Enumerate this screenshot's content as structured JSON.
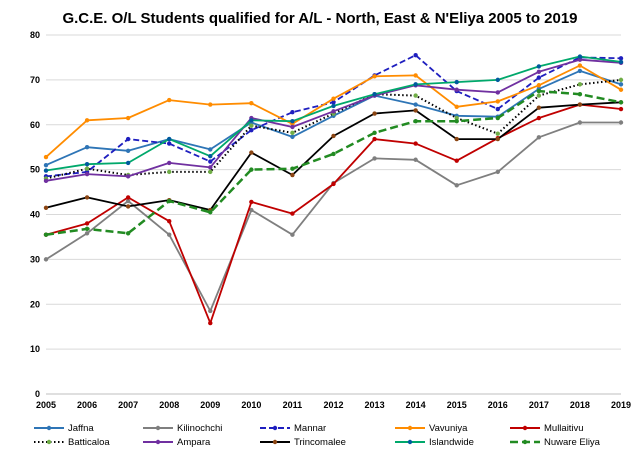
{
  "chart_data": {
    "type": "line",
    "title": "G.C.E. O/L Students qualified for A/L - North, East & N'Eliya 2005 to 2019",
    "xlabel": "",
    "ylabel": "",
    "categories": [
      "2005",
      "2006",
      "2007",
      "2008",
      "2009",
      "2010",
      "2011",
      "2012",
      "2013",
      "2014",
      "2015",
      "2016",
      "2017",
      "2018",
      "2019"
    ],
    "ylim": [
      0,
      80
    ],
    "yticks": [
      0,
      10,
      20,
      30,
      40,
      50,
      60,
      70,
      80
    ],
    "grid": true,
    "legend_position": "bottom",
    "series": [
      {
        "name": "Jaffna",
        "color": "#2E75B6",
        "dash": "solid",
        "marker": "dot",
        "values": [
          51,
          55,
          54.2,
          56.8,
          54.5,
          60.5,
          57.3,
          62,
          66.5,
          64.5,
          62,
          61.8,
          68,
          72,
          69
        ]
      },
      {
        "name": "Kilinochchi",
        "color": "#7F7F7F",
        "dash": "solid",
        "marker": "dot",
        "values": [
          30,
          35.8,
          43,
          35.5,
          18.5,
          41,
          35.5,
          47,
          52.5,
          52.2,
          46.5,
          49.5,
          57.2,
          60.5,
          60.5
        ]
      },
      {
        "name": "Mannar",
        "color": "#1F1FBF",
        "dash": "dash",
        "marker": "dot",
        "values": [
          48.5,
          49.5,
          56.8,
          55.8,
          51.8,
          58.8,
          62.8,
          65,
          71,
          75.5,
          67.5,
          63.5,
          70.5,
          75,
          74.8
        ]
      },
      {
        "name": "Vavuniya",
        "color": "#FF8C00",
        "dash": "solid",
        "marker": "dot",
        "values": [
          52.8,
          61,
          61.5,
          65.5,
          64.5,
          64.8,
          60.2,
          65.8,
          70.8,
          71,
          64,
          65.2,
          68.8,
          73.2,
          67.8
        ]
      },
      {
        "name": "Mullaitivu",
        "color": "#C00000",
        "dash": "solid",
        "marker": "dot",
        "values": [
          35.5,
          38,
          43.8,
          38.5,
          15.8,
          42.8,
          40.2,
          46.8,
          56.8,
          55.8,
          52,
          57,
          61.5,
          64.5,
          63.5
        ]
      },
      {
        "name": "Batticaloa",
        "color": "#000000",
        "dash": "dot",
        "marker": "dot",
        "marker_color": "#70AD47",
        "values": [
          48,
          50.2,
          48.8,
          49.5,
          49.5,
          59.8,
          58.2,
          62.5,
          66.8,
          66.5,
          61.5,
          58,
          66.5,
          69,
          70
        ]
      },
      {
        "name": "Ampara",
        "color": "#7030A0",
        "dash": "solid",
        "marker": "dot",
        "values": [
          47.5,
          49,
          48.5,
          51.5,
          50.5,
          61.5,
          59.5,
          63,
          66.5,
          68.8,
          67.8,
          67.2,
          71.8,
          74.5,
          73.8
        ]
      },
      {
        "name": "Trincomalee",
        "color": "#000000",
        "dash": "solid",
        "marker": "dot",
        "marker_color": "#8B4513",
        "values": [
          41.5,
          43.8,
          41.8,
          43.2,
          41,
          53.8,
          48.8,
          57.5,
          62.5,
          63.2,
          56.8,
          56.8,
          63.8,
          64.5,
          65
        ]
      },
      {
        "name": "Islandwide",
        "color": "#00A86B",
        "dash": "solid",
        "marker": "dot",
        "marker_color": "#005A9E",
        "values": [
          49.8,
          51.2,
          51.5,
          56.8,
          53,
          61,
          60.8,
          64.2,
          66.8,
          69,
          69.5,
          70,
          73,
          75.2,
          74
        ]
      },
      {
        "name": "Nuware Eliya",
        "color": "#228B22",
        "dash": "longdash",
        "marker": "dot",
        "values": [
          35.5,
          36.8,
          35.8,
          43,
          40.5,
          50,
          50.2,
          53.5,
          58.2,
          60.8,
          60.8,
          61.5,
          67.5,
          66.8,
          65
        ]
      }
    ]
  }
}
